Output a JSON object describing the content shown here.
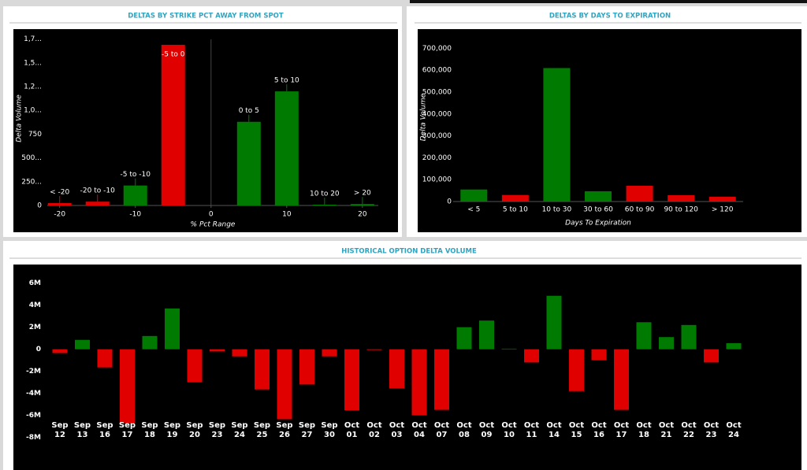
{
  "chart_data": [
    {
      "type": "bar",
      "title": "DELTAS BY STRIKE PCT AWAY FROM SPOT",
      "x_label": "% Pct Range",
      "y_label": "Delta Volume",
      "x": [
        -20,
        -15,
        -10,
        -5,
        5,
        10,
        15,
        20
      ],
      "values": [
        25000,
        40000,
        210000,
        1690000,
        880000,
        1200000,
        8000,
        15000
      ],
      "value_labels": [
        "< -20",
        "-20 to -10",
        "-5 to -10",
        "-5 to 0",
        "0 to 5",
        "5 to 10",
        "10 to 20",
        "> 20"
      ],
      "colors": [
        "#e00000",
        "#e00000",
        "#007a00",
        "#e00000",
        "#007a00",
        "#007a00",
        "#007a00",
        "#007a00"
      ],
      "xlim": [
        -25.8,
        24.7
      ],
      "xticks": [
        -20,
        -10,
        0,
        10,
        20
      ],
      "ylim": [
        0,
        1830000
      ],
      "yticks": [
        0,
        {
          "value": 250000,
          "label": "250..."
        },
        {
          "value": 500000,
          "label": "500..."
        },
        {
          "value": 750000,
          "label": "750"
        },
        {
          "value": 1000000,
          "label": "1,0..."
        },
        {
          "value": 1250000,
          "label": "1,2..."
        },
        {
          "value": 1500000,
          "label": "1,5..."
        },
        {
          "value": 1750000,
          "label": "1,7..."
        }
      ]
    },
    {
      "type": "bar",
      "title": "DELTAS BY DAYS TO EXPIRATION",
      "x_label": "Days To Expiration",
      "y_label": "Delta Volume",
      "categories": [
        "< 5",
        "5 to 10",
        "10 to 30",
        "30 to 60",
        "60 to 90",
        "90 to 120",
        "> 120"
      ],
      "values": [
        55000,
        30000,
        610000,
        47000,
        72000,
        29000,
        22000
      ],
      "colors": [
        "#007a00",
        "#e00000",
        "#007a00",
        "#007a00",
        "#e00000",
        "#e00000",
        "#e00000"
      ],
      "ylim": [
        0,
        770000
      ],
      "yticks": [
        0,
        {
          "value": 100000,
          "label": "100,000"
        },
        {
          "value": 200000,
          "label": "200,000"
        },
        {
          "value": 300000,
          "label": "300,000"
        },
        {
          "value": 400000,
          "label": "400,000"
        },
        {
          "value": 500000,
          "label": "500,000"
        },
        {
          "value": 600000,
          "label": "600,000"
        },
        {
          "value": 700000,
          "label": "700,000"
        }
      ]
    },
    {
      "type": "bar",
      "title": "HISTORICAL OPTION DELTA VOLUME",
      "categories": [
        "Sep 12",
        "Sep 13",
        "Sep 16",
        "Sep 17",
        "Sep 18",
        "Sep 19",
        "Sep 20",
        "Sep 23",
        "Sep 24",
        "Sep 25",
        "Sep 26",
        "Sep 27",
        "Sep 30",
        "Oct 01",
        "Oct 02",
        "Oct 03",
        "Oct 04",
        "Oct 07",
        "Oct 08",
        "Oct 09",
        "Oct 10",
        "Oct 11",
        "Oct 14",
        "Oct 15",
        "Oct 16",
        "Oct 17",
        "Oct 18",
        "Oct 21",
        "Oct 22",
        "Oct 23",
        "Oct 24"
      ],
      "values": [
        -350000,
        850000,
        -1650000,
        -6700000,
        1200000,
        3700000,
        -3000000,
        -200000,
        -650000,
        -3650000,
        -6350000,
        -3200000,
        -650000,
        -5550000,
        -70000,
        -3550000,
        -6000000,
        -5500000,
        2000000,
        2600000,
        50000,
        -1200000,
        4850000,
        -3800000,
        -1000000,
        -5500000,
        2450000,
        1100000,
        2200000,
        -1200000,
        550000
      ],
      "positive_color": "#007a00",
      "negative_color": "#e00000",
      "ylim": [
        -8000000,
        7400000
      ],
      "yticks": [
        {
          "value": 6000000,
          "label": "6M"
        },
        {
          "value": 4000000,
          "label": "4M"
        },
        {
          "value": 2000000,
          "label": "2M"
        },
        0,
        {
          "value": -2000000,
          "label": "-2M"
        },
        {
          "value": -4000000,
          "label": "-4M"
        },
        {
          "value": -6000000,
          "label": "-6M"
        },
        {
          "value": -8000000,
          "label": "-8M"
        }
      ]
    }
  ]
}
